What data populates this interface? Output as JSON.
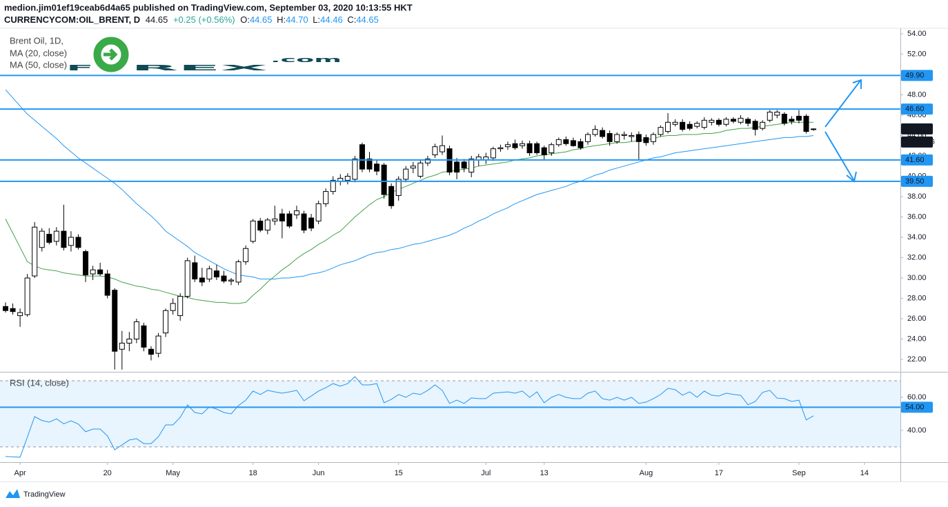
{
  "header": {
    "publisher": "medion.jim01ef19ceab6d4a65 published on TradingView.com, September 03, 2020 10:13:55 HKT",
    "symbol": "CURRENCYCOM:OIL_BRENT, D",
    "last": "44.65",
    "change": "+0.25 (+0.56%)",
    "ohlc": [
      "O:",
      "44.65",
      "H:",
      "44.70",
      "L:",
      "44.46",
      "C:",
      "44.65"
    ]
  },
  "logo": [
    "F",
    "REX",
    ".com"
  ],
  "footer": "TradingView",
  "chart_data": {
    "type": "candlestick",
    "title": "Brent Oil, 1D,",
    "categories": [
      null,
      null,
      "Apr",
      null,
      null,
      null,
      null,
      null,
      null,
      null,
      null,
      null,
      null,
      null,
      "20",
      null,
      null,
      null,
      null,
      null,
      null,
      null,
      null,
      "May",
      null,
      null,
      null,
      null,
      null,
      null,
      null,
      null,
      null,
      null,
      "18",
      null,
      null,
      null,
      null,
      null,
      null,
      null,
      null,
      "Jun",
      null,
      null,
      null,
      null,
      null,
      null,
      null,
      null,
      null,
      null,
      "15",
      null,
      null,
      null,
      null,
      null,
      null,
      null,
      null,
      null,
      null,
      null,
      "Jul",
      null,
      null,
      null,
      null,
      null,
      null,
      null,
      "13",
      null,
      null,
      null,
      null,
      null,
      null,
      null,
      null,
      null,
      null,
      null,
      null,
      null,
      "Aug",
      null,
      null,
      null,
      null,
      null,
      null,
      null,
      null,
      null,
      "17",
      null,
      null,
      null,
      null,
      null,
      null,
      null,
      null,
      null,
      null,
      "Sep",
      null,
      null,
      null,
      null,
      null,
      null,
      null,
      null,
      "14",
      null,
      null,
      null,
      null
    ],
    "up_color": "#ffffff",
    "down_color": "#000000",
    "candles": [
      [
        27.2,
        27.6,
        26.6,
        26.8
      ],
      [
        27.0,
        27.5,
        26.4,
        26.7
      ],
      [
        26.3,
        27.0,
        25.2,
        26.6
      ],
      [
        26.4,
        30.4,
        26.2,
        30.0
      ],
      [
        30.2,
        35.5,
        30.0,
        35.0
      ],
      [
        33.0,
        34.9,
        32.6,
        34.6
      ],
      [
        34.3,
        34.9,
        33.3,
        33.5
      ],
      [
        33.6,
        35.0,
        33.2,
        34.6
      ],
      [
        34.6,
        37.2,
        32.7,
        33.0
      ],
      [
        33.2,
        34.6,
        32.6,
        34.0
      ],
      [
        34.0,
        34.3,
        32.8,
        33.0
      ],
      [
        32.6,
        32.8,
        29.6,
        30.3
      ],
      [
        30.4,
        31.2,
        29.8,
        30.8
      ],
      [
        30.8,
        31.5,
        30.2,
        30.4
      ],
      [
        30.4,
        30.8,
        28.0,
        28.3
      ],
      [
        28.8,
        29.0,
        21.0,
        22.8
      ],
      [
        23.0,
        24.8,
        21.0,
        23.6
      ],
      [
        23.6,
        24.7,
        22.8,
        24.0
      ],
      [
        24.0,
        26.0,
        23.6,
        25.7
      ],
      [
        25.3,
        25.6,
        22.8,
        23.2
      ],
      [
        23.0,
        23.3,
        21.9,
        22.5
      ],
      [
        22.6,
        24.6,
        22.2,
        24.3
      ],
      [
        24.6,
        27.0,
        24.2,
        26.8
      ],
      [
        26.8,
        28.0,
        26.4,
        27.5
      ],
      [
        26.3,
        28.5,
        25.8,
        28.2
      ],
      [
        28.2,
        32.0,
        28.0,
        31.7
      ],
      [
        31.5,
        32.2,
        29.6,
        29.9
      ],
      [
        30.0,
        31.0,
        29.2,
        29.6
      ],
      [
        29.9,
        31.2,
        29.6,
        30.9
      ],
      [
        30.7,
        31.3,
        29.8,
        30.1
      ],
      [
        30.2,
        30.7,
        29.5,
        29.7
      ],
      [
        29.7,
        30.0,
        29.3,
        29.8
      ],
      [
        29.6,
        31.8,
        29.3,
        31.6
      ],
      [
        31.6,
        33.2,
        31.3,
        32.9
      ],
      [
        33.6,
        35.8,
        33.4,
        35.6
      ],
      [
        35.6,
        35.9,
        34.5,
        34.7
      ],
      [
        34.7,
        35.9,
        34.3,
        35.7
      ],
      [
        35.6,
        37.1,
        35.2,
        35.8
      ],
      [
        36.3,
        36.8,
        33.9,
        35.6
      ],
      [
        36.3,
        36.6,
        34.9,
        35.1
      ],
      [
        36.2,
        37.1,
        35.8,
        36.6
      ],
      [
        36.3,
        36.6,
        34.4,
        34.7
      ],
      [
        35.9,
        36.3,
        34.6,
        34.9
      ],
      [
        35.6,
        37.6,
        35.3,
        37.3
      ],
      [
        37.3,
        38.8,
        37.0,
        38.5
      ],
      [
        38.5,
        40.0,
        38.2,
        39.6
      ],
      [
        39.5,
        40.2,
        39.1,
        39.8
      ],
      [
        39.6,
        40.3,
        39.2,
        40.0
      ],
      [
        39.7,
        42.0,
        39.4,
        41.7
      ],
      [
        43.1,
        43.3,
        40.4,
        40.7
      ],
      [
        41.7,
        42.4,
        40.4,
        40.7
      ],
      [
        41.2,
        41.6,
        40.1,
        40.5
      ],
      [
        41.1,
        41.3,
        37.8,
        38.2
      ],
      [
        39.0,
        39.3,
        36.8,
        37.1
      ],
      [
        38.1,
        40.0,
        37.6,
        39.7
      ],
      [
        39.7,
        41.0,
        39.4,
        40.7
      ],
      [
        40.8,
        41.4,
        40.3,
        41.0
      ],
      [
        40.0,
        41.6,
        39.8,
        41.3
      ],
      [
        41.3,
        42.0,
        41.0,
        41.7
      ],
      [
        42.1,
        43.2,
        41.8,
        42.9
      ],
      [
        42.4,
        44.0,
        42.1,
        43.0
      ],
      [
        42.7,
        43.0,
        40.1,
        40.4
      ],
      [
        41.4,
        41.8,
        39.7,
        40.4
      ],
      [
        41.4,
        41.7,
        40.4,
        40.8
      ],
      [
        40.4,
        42.0,
        39.9,
        41.7
      ],
      [
        41.6,
        42.2,
        41.0,
        41.9
      ],
      [
        41.6,
        42.3,
        41.2,
        41.9
      ],
      [
        41.8,
        42.9,
        41.5,
        42.7
      ],
      [
        42.7,
        43.1,
        42.4,
        42.8
      ],
      [
        42.9,
        43.4,
        42.6,
        43.1
      ],
      [
        43.2,
        43.6,
        42.6,
        42.8
      ],
      [
        43.0,
        43.5,
        42.7,
        43.2
      ],
      [
        43.2,
        43.5,
        42.0,
        42.3
      ],
      [
        43.2,
        43.4,
        42.1,
        42.3
      ],
      [
        42.8,
        43.0,
        41.6,
        42.1
      ],
      [
        42.3,
        43.3,
        42.0,
        43.1
      ],
      [
        43.1,
        43.8,
        42.9,
        43.6
      ],
      [
        43.6,
        43.9,
        43.0,
        43.2
      ],
      [
        43.5,
        43.8,
        42.9,
        43.0
      ],
      [
        43.4,
        43.7,
        42.6,
        42.8
      ],
      [
        43.4,
        44.3,
        43.1,
        44.1
      ],
      [
        44.1,
        45.0,
        43.9,
        44.6
      ],
      [
        44.5,
        44.8,
        43.7,
        43.9
      ],
      [
        44.2,
        44.5,
        43.0,
        43.4
      ],
      [
        43.4,
        44.3,
        43.2,
        44.1
      ],
      [
        44.0,
        44.4,
        43.6,
        44.1
      ],
      [
        43.9,
        44.3,
        43.4,
        44.0
      ],
      [
        44.1,
        44.4,
        41.6,
        43.4
      ],
      [
        43.8,
        44.1,
        43.0,
        43.3
      ],
      [
        43.4,
        44.3,
        43.1,
        44.1
      ],
      [
        44.1,
        45.0,
        43.9,
        44.8
      ],
      [
        44.4,
        46.2,
        44.2,
        45.3
      ],
      [
        45.1,
        45.6,
        44.9,
        45.3
      ],
      [
        45.3,
        45.6,
        44.4,
        44.6
      ],
      [
        45.1,
        45.4,
        44.5,
        44.7
      ],
      [
        44.9,
        45.4,
        44.7,
        45.2
      ],
      [
        44.8,
        45.8,
        44.6,
        45.5
      ],
      [
        45.3,
        45.7,
        45.0,
        45.5
      ],
      [
        45.5,
        45.7,
        44.9,
        45.1
      ],
      [
        45.1,
        45.8,
        44.9,
        45.6
      ],
      [
        45.6,
        45.8,
        45.2,
        45.4
      ],
      [
        45.3,
        46.0,
        45.1,
        45.7
      ],
      [
        45.6,
        45.8,
        44.9,
        45.2
      ],
      [
        45.4,
        45.6,
        44.0,
        44.6
      ],
      [
        44.7,
        45.5,
        44.5,
        45.3
      ],
      [
        45.5,
        46.5,
        45.3,
        46.3
      ],
      [
        46.0,
        46.5,
        45.7,
        46.3
      ],
      [
        46.1,
        46.3,
        45.0,
        45.2
      ],
      [
        45.6,
        45.9,
        45.1,
        45.4
      ],
      [
        45.9,
        46.5,
        45.2,
        45.5
      ],
      [
        45.9,
        46.1,
        44.2,
        44.4
      ],
      [
        44.65,
        44.7,
        44.46,
        44.65
      ],
      null,
      null,
      null,
      null,
      null,
      null,
      null,
      null,
      null,
      null,
      null
    ],
    "series": [
      {
        "name": "MA (20, close)",
        "color": "#43a047",
        "values": [
          35.8,
          34.4,
          33.0,
          31.6,
          31.2,
          30.9,
          30.8,
          30.7,
          30.5,
          30.4,
          30.3,
          30.2,
          30.2,
          30.2,
          30.1,
          29.9,
          29.6,
          29.4,
          29.2,
          29.1,
          28.9,
          28.8,
          28.6,
          28.4,
          28.2,
          28.1,
          27.9,
          27.8,
          27.7,
          27.6,
          27.6,
          27.5,
          27.5,
          27.6,
          28.3,
          28.9,
          29.6,
          30.2,
          30.8,
          31.3,
          31.9,
          32.4,
          32.8,
          33.3,
          33.7,
          34.2,
          34.6,
          35.3,
          36.0,
          36.6,
          37.2,
          37.7,
          38.0,
          38.4,
          38.7,
          39.0,
          39.3,
          39.6,
          39.9,
          40.1,
          40.4,
          40.5,
          40.6,
          40.7,
          40.8,
          41.0,
          41.1,
          41.2,
          41.3,
          41.4,
          41.6,
          41.7,
          41.8,
          42.0,
          42.1,
          42.2,
          42.3,
          42.4,
          42.6,
          42.7,
          42.9,
          43.0,
          43.1,
          43.2,
          43.3,
          43.3,
          43.4,
          43.5,
          43.6,
          43.7,
          43.9,
          44.0,
          44.0,
          44.1,
          44.1,
          44.1,
          44.2,
          44.2,
          44.3,
          44.5,
          44.6,
          44.7,
          44.7,
          44.8,
          44.9,
          45.0,
          45.1,
          45.2,
          45.3,
          45.3,
          45.3,
          45.3,
          null,
          null,
          null,
          null,
          null,
          null,
          null,
          null,
          null,
          null,
          null
        ]
      },
      {
        "name": "MA (50, close)",
        "color": "#2196f3",
        "values": [
          48.5,
          47.7,
          46.9,
          46.1,
          45.5,
          44.9,
          44.3,
          43.7,
          43.0,
          42.4,
          41.8,
          41.3,
          40.8,
          40.3,
          39.8,
          39.3,
          38.7,
          38.0,
          37.3,
          36.7,
          36.1,
          35.4,
          34.6,
          34.1,
          33.6,
          33.1,
          32.5,
          32.1,
          31.7,
          31.3,
          30.9,
          30.6,
          30.3,
          30.2,
          30.1,
          29.9,
          29.9,
          29.9,
          30.0,
          30.0,
          30.1,
          30.2,
          30.4,
          30.5,
          30.7,
          31.0,
          31.3,
          31.5,
          31.7,
          32.0,
          32.3,
          32.5,
          32.6,
          32.8,
          32.9,
          33.1,
          33.3,
          33.4,
          33.6,
          33.8,
          34.0,
          34.2,
          34.5,
          34.9,
          35.2,
          35.6,
          35.9,
          36.3,
          36.6,
          36.9,
          37.3,
          37.6,
          37.9,
          38.2,
          38.4,
          38.6,
          38.8,
          39.0,
          39.3,
          39.5,
          39.8,
          40.1,
          40.3,
          40.6,
          40.8,
          41.0,
          41.2,
          41.4,
          41.6,
          41.8,
          41.9,
          42.1,
          42.3,
          42.4,
          42.5,
          42.6,
          42.7,
          42.8,
          42.9,
          43.0,
          43.1,
          43.2,
          43.3,
          43.4,
          43.5,
          43.6,
          43.7,
          43.8,
          43.8,
          43.9,
          43.9,
          44.0,
          null,
          null,
          null,
          null,
          null,
          null,
          null,
          null,
          null,
          null,
          null
        ]
      }
    ],
    "ylim": [
      20.85,
      54.47
    ],
    "yticks": [
      {
        "value": 22,
        "label": "22.00"
      },
      {
        "value": 24,
        "label": "24.00"
      },
      {
        "value": 26,
        "label": "26.00"
      },
      {
        "value": 28,
        "label": "28.00"
      },
      {
        "value": 30,
        "label": "30.00"
      },
      {
        "value": 32,
        "label": "32.00"
      },
      {
        "value": 34,
        "label": "34.00"
      },
      {
        "value": 36,
        "label": "36.00"
      },
      {
        "value": 38,
        "label": "38.00"
      },
      {
        "value": 40,
        "label": "40.00"
      },
      {
        "value": 42,
        "label": "42.00"
      },
      {
        "value": 44,
        "label": "44.00"
      },
      {
        "value": 46,
        "label": "46.00"
      },
      {
        "value": 48,
        "label": "48.00"
      },
      {
        "value": 50,
        "label": "50.00"
      },
      {
        "value": 52,
        "label": "52.00"
      },
      {
        "value": 54,
        "label": "54.00"
      }
    ],
    "grid": false,
    "level_color": "#2196f3",
    "levels": [
      {
        "value": 49.9,
        "label": "49.90"
      },
      {
        "value": 46.6,
        "label": "46.60"
      },
      {
        "value": 41.6,
        "label": "41.60"
      },
      {
        "value": 39.5,
        "label": "39.50"
      }
    ],
    "last": {
      "value": 44.65,
      "label": "44.65"
    },
    "countdown": "18:46:06",
    "rsi": {
      "name": "RSI (14, close)",
      "color": "#2196f3",
      "band_color": "#2196f3",
      "values": [
        24.2,
        24.0,
        23.8,
        36.0,
        48.3,
        46.0,
        45.0,
        47.0,
        44.0,
        45.8,
        43.8,
        39.2,
        40.8,
        40.8,
        36.7,
        28.3,
        31.2,
        34.2,
        35.0,
        32.0,
        32.0,
        36.2,
        43.3,
        43.3,
        47.9,
        55.4,
        50.8,
        50.0,
        54.2,
        52.9,
        50.8,
        50.0,
        55.0,
        58.3,
        63.8,
        61.7,
        64.2,
        63.3,
        62.5,
        63.3,
        64.2,
        57.9,
        60.8,
        63.8,
        65.8,
        68.3,
        66.7,
        68.3,
        72.5,
        67.5,
        67.5,
        68.3,
        56.7,
        58.8,
        61.7,
        60.0,
        62.5,
        61.7,
        64.2,
        67.5,
        64.2,
        56.3,
        58.3,
        56.3,
        59.6,
        59.2,
        59.2,
        62.5,
        62.9,
        63.3,
        62.5,
        63.8,
        60.0,
        63.3,
        56.7,
        60.0,
        61.7,
        60.0,
        59.2,
        59.2,
        62.5,
        63.8,
        59.2,
        58.3,
        60.0,
        58.3,
        60.0,
        56.3,
        57.1,
        59.2,
        61.7,
        65.4,
        64.6,
        61.3,
        63.3,
        60.0,
        63.8,
        61.3,
        60.8,
        62.5,
        61.8,
        61.2,
        55.5,
        57.5,
        63.0,
        64.2,
        59.5,
        59.2,
        57.5,
        58.3,
        46.3,
        48.8,
        null,
        null,
        null,
        null,
        null,
        null,
        null,
        null,
        null,
        null,
        null
      ],
      "ylim": [
        20.8,
        75
      ],
      "yticks": [
        {
          "value": 40,
          "label": "40.00"
        },
        {
          "value": 60,
          "label": "60.00"
        }
      ],
      "bands": [
        30,
        70
      ],
      "level": {
        "value": 54,
        "label": "54.00"
      }
    }
  }
}
